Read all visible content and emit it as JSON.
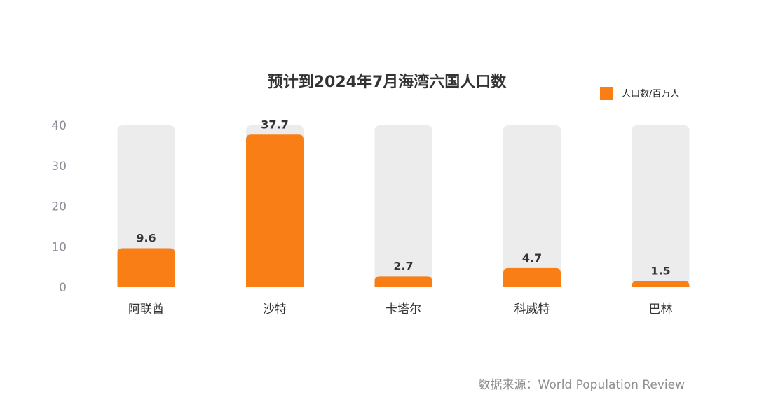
{
  "chart_data": {
    "type": "bar",
    "title": "预计到2024年7月海湾六国人口数",
    "categories": [
      "阿联酋",
      "沙特",
      "卡塔尔",
      "科威特",
      "巴林"
    ],
    "series": [
      {
        "name": "人口数/百万人",
        "values": [
          9.6,
          37.7,
          2.7,
          4.7,
          1.5
        ],
        "color": "#f97e16"
      }
    ],
    "data_labels": [
      "9.6",
      "37.7",
      "2.7",
      "4.7",
      "1.5"
    ],
    "y_ticks": [
      "0",
      "10",
      "20",
      "30",
      "40"
    ],
    "ylim": [
      0,
      40
    ],
    "background_bar_color": "#ececec",
    "xlabel": "",
    "ylabel": "",
    "grid": false,
    "legend_position": "top-right"
  },
  "source_note": "数据来源：World Population Review",
  "colors": {
    "bar": "#f97e16",
    "track": "#ececec",
    "title": "#333333",
    "tick": "#8a8f99",
    "source": "#8f8f8f"
  }
}
